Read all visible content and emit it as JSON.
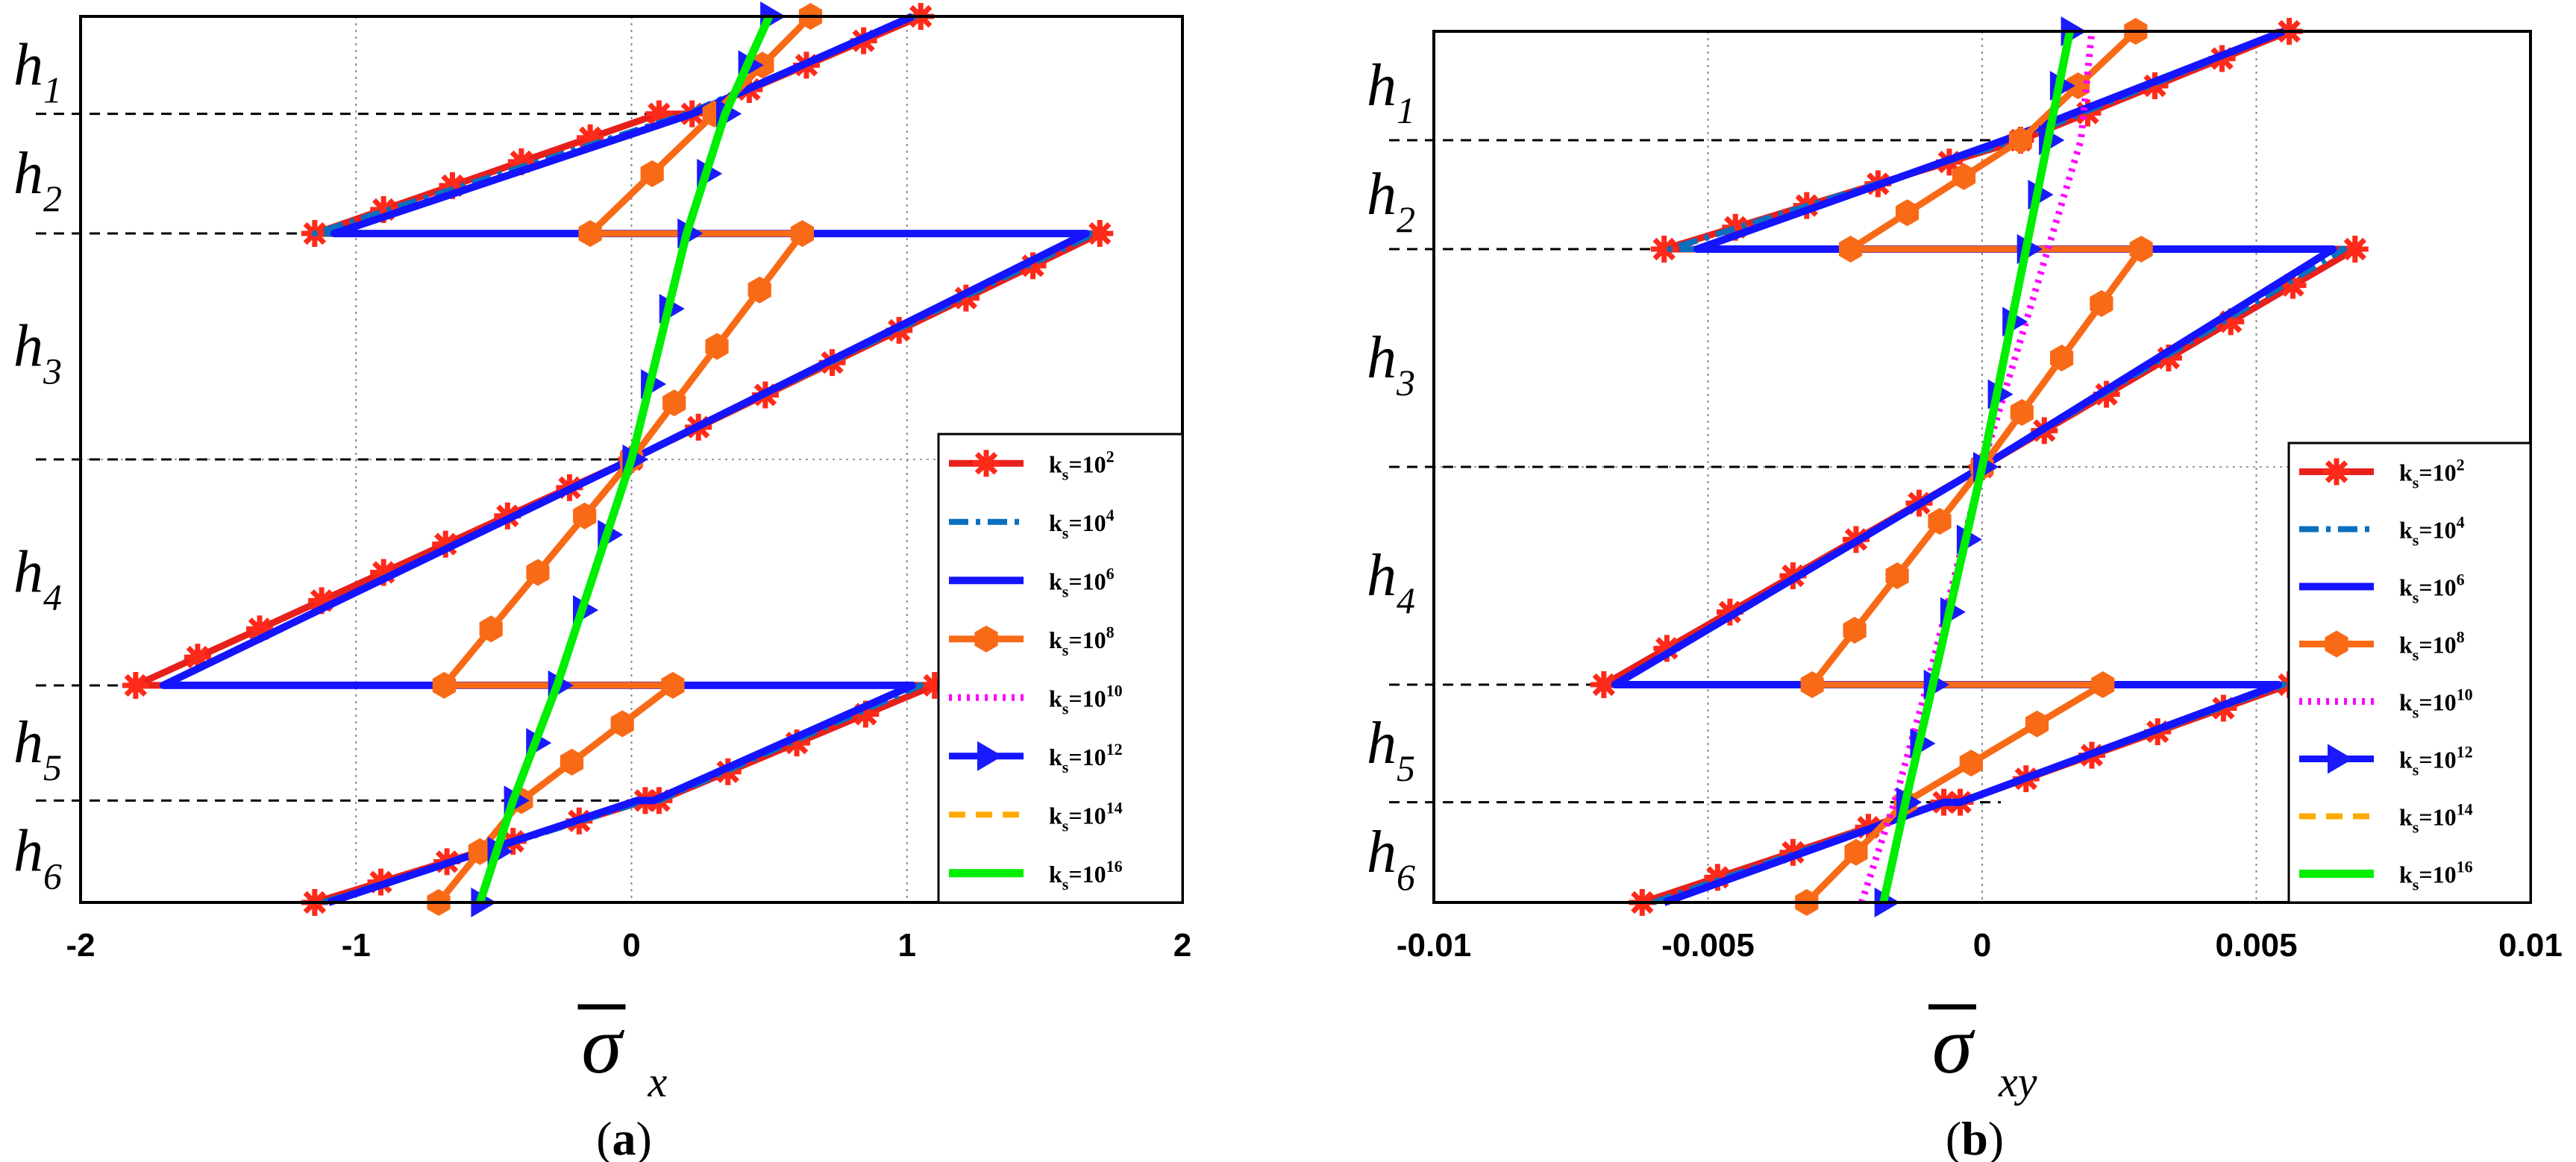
{
  "figure": {
    "panels": [
      {
        "caption_letter": "a",
        "xlabel_main": "σ",
        "xlabel_sub": "x",
        "layer_labels": [
          "h",
          "h",
          "h",
          "h",
          "h",
          "h"
        ],
        "layer_subs": [
          "1",
          "2",
          "3",
          "4",
          "5",
          "6"
        ]
      },
      {
        "caption_letter": "b",
        "xlabel_main": "σ",
        "xlabel_sub": "xy",
        "layer_labels": [
          "h",
          "h",
          "h",
          "h",
          "h",
          "h"
        ],
        "layer_subs": [
          "1",
          "2",
          "3",
          "4",
          "5",
          "6"
        ]
      }
    ],
    "legend": [
      {
        "base": "k",
        "sub": "s",
        "eq": "=10",
        "exp": "2",
        "color": "#ff0000"
      },
      {
        "base": "k",
        "sub": "s",
        "eq": "=10",
        "exp": "4",
        "color": "#0072bd"
      },
      {
        "base": "k",
        "sub": "s",
        "eq": "=10",
        "exp": "6",
        "color": "#0000ff"
      },
      {
        "base": "k",
        "sub": "s",
        "eq": "=10",
        "exp": "8",
        "color": "#ff6600"
      },
      {
        "base": "k",
        "sub": "s",
        "eq": "=10",
        "exp": "10",
        "color": "#ff00ff"
      },
      {
        "base": "k",
        "sub": "s",
        "eq": "=10",
        "exp": "12",
        "color": "#1a1aff"
      },
      {
        "base": "k",
        "sub": "s",
        "eq": "=10",
        "exp": "14",
        "color": "#ffb000"
      },
      {
        "base": "k",
        "sub": "s",
        "eq": "=10",
        "exp": "16",
        "color": "#00ff00"
      }
    ]
  },
  "chart_data": [
    {
      "type": "line",
      "title": "",
      "xlabel": "σ̄x",
      "ylabel": "layers h1–h6",
      "xlim": [
        -2,
        2
      ],
      "xticks": [
        -2,
        -1,
        0,
        1,
        2
      ],
      "xtick_labels": [
        "-2",
        "-1",
        "0",
        "1",
        "2"
      ],
      "ylim": [
        0,
        1
      ],
      "interfaces": [
        0.115,
        0.245,
        0.5,
        0.755,
        0.89
      ],
      "legend_position": "right",
      "series": [
        {
          "name": "k_s=10^2",
          "style": "red-star",
          "points": [
            [
              -1.15,
              0
            ],
            [
              0.05,
              0.115
            ],
            [
              0.1,
              0.115
            ],
            [
              1.1,
              0.245
            ],
            [
              1.1,
              0.245
            ],
            [
              -1.65,
              0.245
            ],
            [
              -1.8,
              0.245
            ],
            [
              0,
              0.5
            ],
            [
              1.7,
              0.755
            ],
            [
              -1.17,
              0.755
            ],
            [
              -1.15,
              0.755
            ],
            [
              0.1,
              0.89
            ],
            [
              0.22,
              0.89
            ],
            [
              1.05,
              1
            ]
          ]
        },
        {
          "name": "k_s=10^4",
          "style": "dashdot",
          "points": [
            [
              -1.12,
              0
            ],
            [
              0.05,
              0.115
            ],
            [
              0.1,
              0.115
            ],
            [
              1.05,
              0.245
            ],
            [
              -1.7,
              0.245
            ],
            [
              0,
              0.5
            ],
            [
              1.68,
              0.755
            ],
            [
              -1.15,
              0.755
            ],
            [
              0.2,
              0.89
            ],
            [
              1.03,
              1
            ]
          ]
        },
        {
          "name": "k_s=10^6",
          "style": "solid-blue",
          "points": [
            [
              -1.1,
              0
            ],
            [
              0.02,
              0.115
            ],
            [
              0.08,
              0.115
            ],
            [
              1.02,
              0.245
            ],
            [
              -1.7,
              0.245
            ],
            [
              0,
              0.5
            ],
            [
              1.65,
              0.755
            ],
            [
              -1.08,
              0.755
            ],
            [
              0.22,
              0.89
            ],
            [
              1.02,
              1
            ]
          ]
        },
        {
          "name": "k_s=10^8",
          "style": "orange-hex",
          "points": [
            [
              -0.7,
              0
            ],
            [
              -0.4,
              0.115
            ],
            [
              -0.4,
              0.115
            ],
            [
              0.15,
              0.245
            ],
            [
              -0.68,
              0.245
            ],
            [
              0,
              0.5
            ],
            [
              0.62,
              0.755
            ],
            [
              -0.15,
              0.755
            ],
            [
              0.3,
              0.89
            ],
            [
              0.65,
              1
            ]
          ]
        },
        {
          "name": "k_s=10^10",
          "style": "magenta-dotted",
          "points": [
            [
              -0.55,
              0
            ],
            [
              -0.43,
              0.115
            ],
            [
              -0.27,
              0.245
            ],
            [
              0,
              0.5
            ],
            [
              0.2,
              0.755
            ],
            [
              0.34,
              0.89
            ],
            [
              0.5,
              1
            ]
          ]
        },
        {
          "name": "k_s=10^12",
          "style": "blue-triangle",
          "points": [
            [
              -0.55,
              0
            ],
            [
              -0.43,
              0.115
            ],
            [
              -0.27,
              0.245
            ],
            [
              0,
              0.5
            ],
            [
              0.2,
              0.755
            ],
            [
              0.34,
              0.89
            ],
            [
              0.5,
              1
            ]
          ]
        },
        {
          "name": "k_s=10^14",
          "style": "orange-dashed",
          "points": [
            [
              -0.55,
              0
            ],
            [
              -0.43,
              0.115
            ],
            [
              -0.27,
              0.245
            ],
            [
              0,
              0.5
            ],
            [
              0.2,
              0.755
            ],
            [
              0.34,
              0.89
            ],
            [
              0.5,
              1
            ]
          ]
        },
        {
          "name": "k_s=10^16",
          "style": "green-solid",
          "points": [
            [
              -0.55,
              0
            ],
            [
              -0.43,
              0.115
            ],
            [
              -0.27,
              0.245
            ],
            [
              0,
              0.5
            ],
            [
              0.2,
              0.755
            ],
            [
              0.34,
              0.89
            ],
            [
              0.5,
              1
            ]
          ]
        }
      ]
    },
    {
      "type": "line",
      "title": "",
      "xlabel": "σ̄xy",
      "ylabel": "layers h1–h6",
      "xlim": [
        -0.01,
        0.01
      ],
      "xticks": [
        -0.01,
        -0.005,
        0,
        0.005,
        0.01
      ],
      "xtick_labels": [
        "-0.01",
        "-0.005",
        "0",
        "0.005",
        "0.01"
      ],
      "ylim": [
        0,
        1
      ],
      "interfaces": [
        0.115,
        0.25,
        0.5,
        0.75,
        0.875
      ],
      "legend_position": "right",
      "series": [
        {
          "name": "k_s=10^2",
          "style": "red-star",
          "points": [
            [
              -0.0062,
              0
            ],
            [
              -0.0007,
              0.115
            ],
            [
              -0.0004,
              0.115
            ],
            [
              0.0056,
              0.25
            ],
            [
              -0.0069,
              0.25
            ],
            [
              0,
              0.5
            ],
            [
              0.0068,
              0.75
            ],
            [
              -0.0058,
              0.75
            ],
            [
              0.0007,
              0.875
            ],
            [
              0.0056,
              1
            ]
          ]
        },
        {
          "name": "k_s=10^4",
          "style": "dashdot",
          "points": [
            [
              -0.006,
              0
            ],
            [
              -0.0007,
              0.115
            ],
            [
              -0.0004,
              0.115
            ],
            [
              0.0055,
              0.25
            ],
            [
              -0.0067,
              0.25
            ],
            [
              0,
              0.5
            ],
            [
              0.0066,
              0.75
            ],
            [
              -0.0057,
              0.75
            ],
            [
              0.0006,
              0.875
            ],
            [
              0.0055,
              1
            ]
          ]
        },
        {
          "name": "k_s=10^6",
          "style": "solid-blue",
          "points": [
            [
              -0.0058,
              0
            ],
            [
              -0.0007,
              0.115
            ],
            [
              -0.0004,
              0.115
            ],
            [
              0.0054,
              0.25
            ],
            [
              -0.0067,
              0.25
            ],
            [
              0,
              0.5
            ],
            [
              0.0064,
              0.75
            ],
            [
              -0.0052,
              0.75
            ],
            [
              0.0004,
              0.875
            ],
            [
              0.0055,
              1
            ]
          ]
        },
        {
          "name": "k_s=10^8",
          "style": "orange-hex",
          "points": [
            [
              -0.0032,
              0
            ],
            [
              -0.0014,
              0.115
            ],
            [
              -0.0014,
              0.115
            ],
            [
              0.0022,
              0.25
            ],
            [
              -0.0031,
              0.25
            ],
            [
              0,
              0.5
            ],
            [
              0.0029,
              0.75
            ],
            [
              -0.0024,
              0.75
            ],
            [
              0.0007,
              0.875
            ],
            [
              0.0028,
              1
            ]
          ]
        },
        {
          "name": "k_s=10^10",
          "style": "magenta-dotted",
          "points": [
            [
              -0.0022,
              0
            ],
            [
              -0.0016,
              0.115
            ],
            [
              -0.001,
              0.25
            ],
            [
              0,
              0.5
            ],
            [
              0.0012,
              0.75
            ],
            [
              0.0018,
              0.875
            ],
            [
              0.002,
              1
            ]
          ]
        },
        {
          "name": "k_s=10^12",
          "style": "blue-triangle",
          "points": [
            [
              -0.0018,
              0
            ],
            [
              -0.0014,
              0.115
            ],
            [
              -0.0009,
              0.25
            ],
            [
              0,
              0.5
            ],
            [
              0.0008,
              0.75
            ],
            [
              0.0012,
              0.875
            ],
            [
              0.0016,
              1
            ]
          ]
        },
        {
          "name": "k_s=10^14",
          "style": "orange-dashed",
          "points": [
            [
              -0.0018,
              0
            ],
            [
              -0.0014,
              0.115
            ],
            [
              -0.0009,
              0.25
            ],
            [
              0,
              0.5
            ],
            [
              0.0008,
              0.75
            ],
            [
              0.0012,
              0.875
            ],
            [
              0.0016,
              1
            ]
          ]
        },
        {
          "name": "k_s=10^16",
          "style": "green-solid",
          "points": [
            [
              -0.0018,
              0
            ],
            [
              -0.0014,
              0.115
            ],
            [
              -0.0009,
              0.25
            ],
            [
              0,
              0.5
            ],
            [
              0.0008,
              0.75
            ],
            [
              0.0012,
              0.875
            ],
            [
              0.0016,
              1
            ]
          ]
        }
      ]
    }
  ]
}
